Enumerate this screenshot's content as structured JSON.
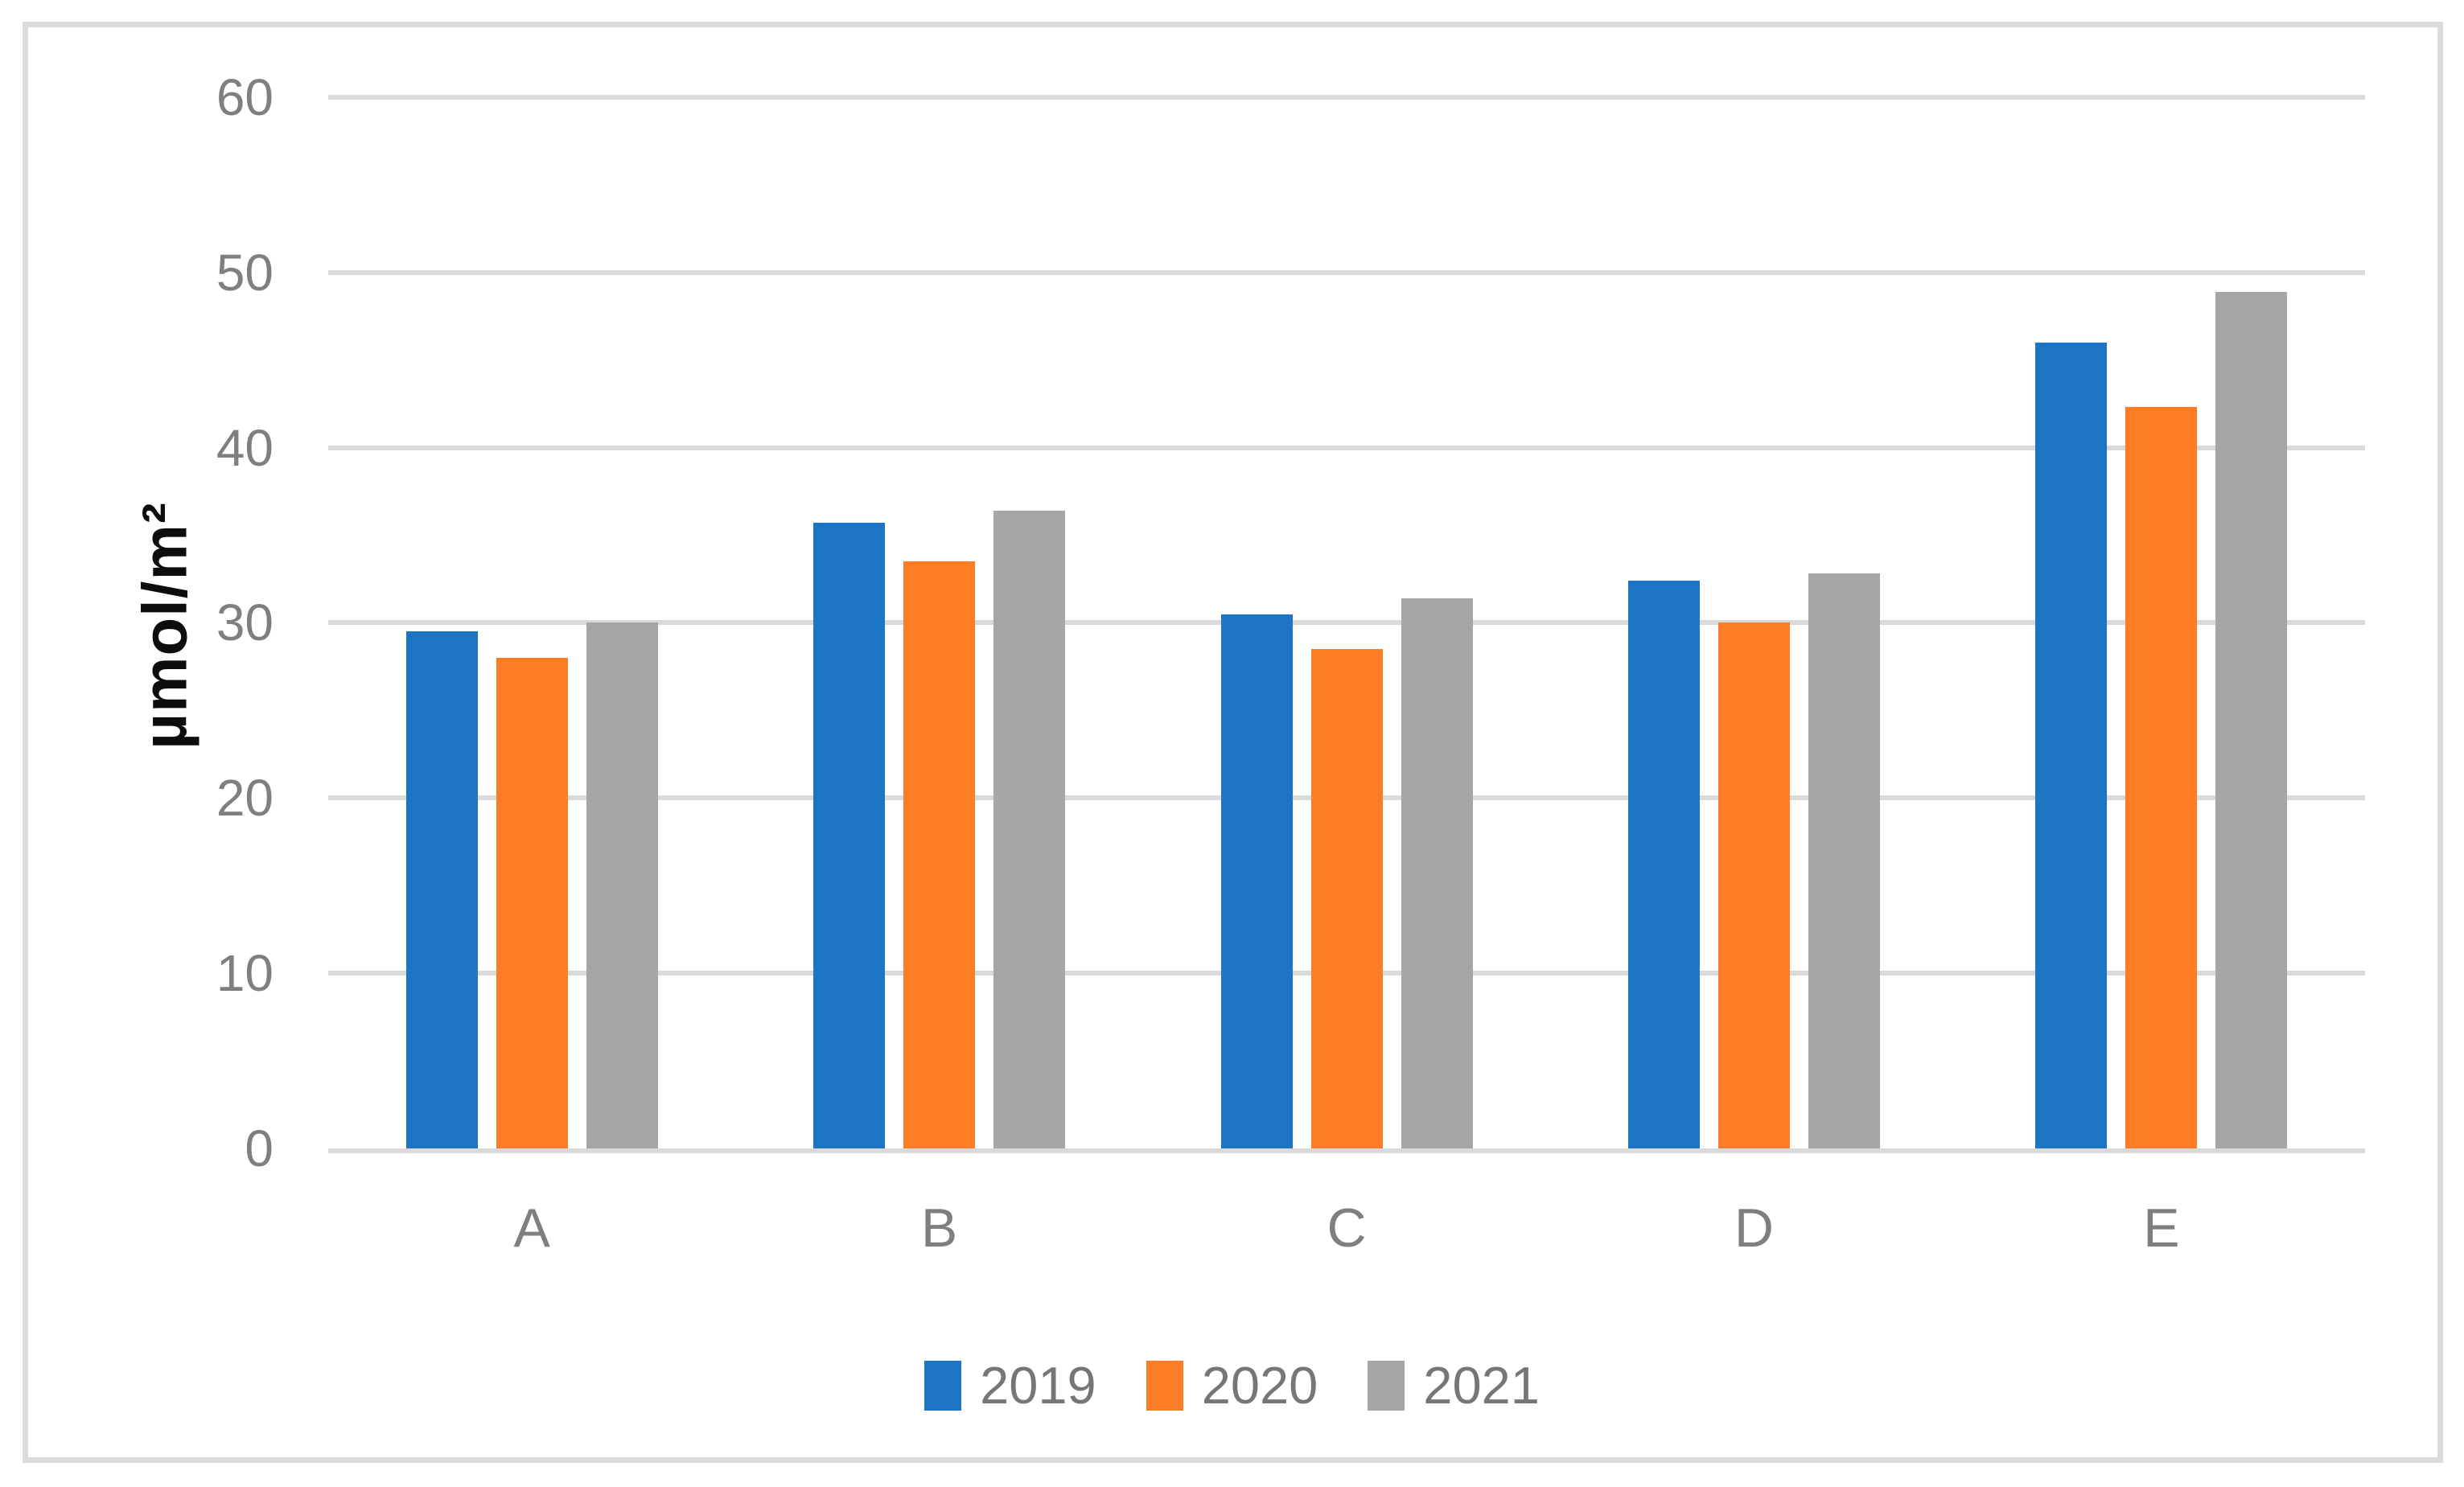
{
  "chart_data": {
    "type": "bar",
    "title": "",
    "categories": [
      "A",
      "B",
      "C",
      "D",
      "E"
    ],
    "series": [
      {
        "name": "2019",
        "color": "#1b75c4",
        "values": [
          29.5,
          35.7,
          30.5,
          32.4,
          46.0
        ]
      },
      {
        "name": "2020",
        "color": "#fc7d26",
        "values": [
          28.0,
          33.5,
          28.5,
          30.0,
          42.3
        ]
      },
      {
        "name": "2021",
        "color": "#a6a6a6",
        "values": [
          30.0,
          36.4,
          31.4,
          32.8,
          48.9
        ]
      }
    ],
    "xlabel": "",
    "ylabel": "µmol/m²",
    "yticks": [
      0,
      10,
      20,
      30,
      40,
      50,
      60
    ],
    "ylim": [
      0,
      60
    ],
    "grid": true,
    "legend_position": "bottom",
    "colors": {
      "gridline": "#d9d9d9",
      "axis_line": "#d9d9d9",
      "frame_border": "#dbdbdb",
      "tick_text": "#7f7f7f",
      "category_text": "#7f7f7f",
      "legend_text": "#767676",
      "axis_title_text": "#0d0d0d",
      "background": "#ffffff"
    }
  }
}
